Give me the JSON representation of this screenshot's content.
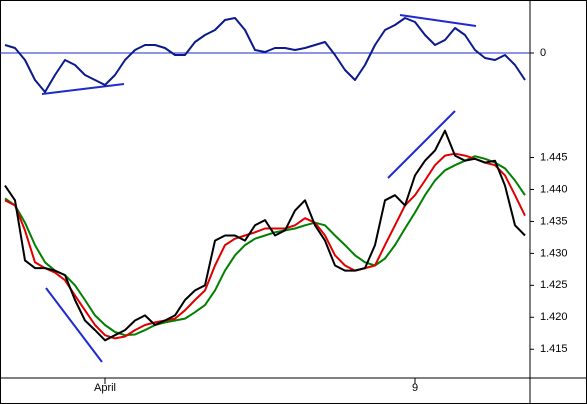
{
  "chart_data": [
    {
      "type": "line",
      "color": "#0a1a8c",
      "zero_line_color": "#1f2ad0",
      "values": [
        0.16,
        0.1,
        -0.14,
        -0.54,
        -0.78,
        -0.44,
        -0.14,
        -0.24,
        -0.44,
        -0.54,
        -0.64,
        -0.44,
        -0.14,
        0.06,
        0.16,
        0.16,
        0.1,
        -0.04,
        -0.04,
        0.22,
        0.36,
        0.46,
        0.66,
        0.7,
        0.46,
        0.06,
        0.02,
        0.1,
        0.1,
        0.06,
        0.1,
        0.16,
        0.22,
        -0.04,
        -0.34,
        -0.54,
        -0.24,
        0.16,
        0.46,
        0.56,
        0.7,
        0.62,
        0.36,
        0.16,
        0.26,
        0.5,
        0.36,
        0.06,
        -0.1,
        -0.14,
        -0.04,
        -0.24,
        -0.54
      ],
      "ylim": [
        -0.94,
        1.06
      ],
      "yticks": [
        0
      ]
    },
    {
      "type": "line",
      "categories": [
        null,
        null,
        null,
        null,
        null,
        null,
        null,
        null,
        null,
        null,
        "April",
        null,
        null,
        null,
        null,
        null,
        null,
        null,
        null,
        null,
        null,
        null,
        null,
        null,
        null,
        null,
        null,
        null,
        null,
        null,
        null,
        null,
        null,
        null,
        null,
        null,
        null,
        null,
        null,
        null,
        null,
        "9",
        null,
        null,
        null,
        null,
        null,
        null,
        null,
        null,
        null,
        null,
        null
      ],
      "series": [
        {
          "color": "#000000",
          "values": [
            1.4406,
            1.4383,
            1.4289,
            1.4277,
            1.4277,
            1.4273,
            1.4266,
            1.4227,
            1.4195,
            1.418,
            1.4164,
            1.4172,
            1.418,
            1.4195,
            1.4203,
            1.4188,
            1.4195,
            1.4203,
            1.4227,
            1.4242,
            1.425,
            1.432,
            1.4328,
            1.4328,
            1.432,
            1.4344,
            1.4352,
            1.4328,
            1.4336,
            1.4367,
            1.4383,
            1.4344,
            1.432,
            1.4281,
            1.4273,
            1.4273,
            1.4277,
            1.4313,
            1.4383,
            1.4391,
            1.4375,
            1.4422,
            1.4445,
            1.4461,
            1.4492,
            1.4453,
            1.4445,
            1.4448,
            1.4442,
            1.4445,
            1.4406,
            1.4344,
            1.4328
          ]
        },
        {
          "color": "#e00000",
          "values": [
            1.4383,
            1.4375,
            1.4336,
            1.4286,
            1.4277,
            1.427,
            1.4258,
            1.4234,
            1.4211,
            1.4188,
            1.4172,
            1.4167,
            1.417,
            1.418,
            1.4188,
            1.4192,
            1.4195,
            1.4198,
            1.4211,
            1.4227,
            1.4242,
            1.4281,
            1.4313,
            1.4323,
            1.4328,
            1.4333,
            1.4339,
            1.4339,
            1.4339,
            1.4344,
            1.4355,
            1.4348,
            1.4328,
            1.4297,
            1.4281,
            1.4273,
            1.4277,
            1.4281,
            1.4313,
            1.4344,
            1.4375,
            1.4391,
            1.4414,
            1.4438,
            1.4453,
            1.4456,
            1.4453,
            1.4448,
            1.4442,
            1.4438,
            1.4422,
            1.4391,
            1.4359
          ]
        },
        {
          "color": "#008000",
          "values": [
            1.4386,
            1.4375,
            1.4348,
            1.4313,
            1.4286,
            1.4273,
            1.4266,
            1.425,
            1.4227,
            1.4203,
            1.4188,
            1.4177,
            1.4172,
            1.4173,
            1.418,
            1.4188,
            1.4192,
            1.4195,
            1.4198,
            1.4208,
            1.4219,
            1.4242,
            1.4273,
            1.4297,
            1.4313,
            1.4323,
            1.4328,
            1.4333,
            1.4336,
            1.4339,
            1.4344,
            1.4348,
            1.4344,
            1.4328,
            1.4313,
            1.4297,
            1.4286,
            1.4281,
            1.4292,
            1.4313,
            1.4339,
            1.4364,
            1.4391,
            1.4414,
            1.443,
            1.4438,
            1.4445,
            1.4452,
            1.4448,
            1.4442,
            1.4433,
            1.4414,
            1.4391
          ]
        }
      ],
      "ylim": [
        1.4105,
        1.454
      ],
      "yticks": [
        1.415,
        {
          "value": 1.42,
          "label": "1.420"
        },
        1.425,
        {
          "value": 1.43,
          "label": "1.430"
        },
        1.435,
        {
          "value": 1.44,
          "label": "1.440"
        },
        1.445
      ]
    }
  ]
}
